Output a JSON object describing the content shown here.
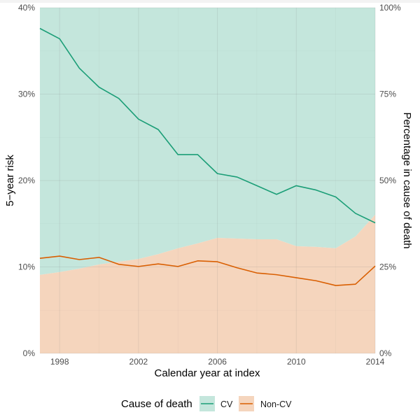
{
  "chart_data": {
    "type": "area",
    "title": "",
    "xlabel": "Calendar year at index",
    "ylabel": "5−year risk",
    "ylabel_right": "Percentage in cause of death",
    "x": [
      1997,
      1998,
      1999,
      2000,
      2001,
      2002,
      2003,
      2004,
      2005,
      2006,
      2007,
      2008,
      2009,
      2010,
      2011,
      2012,
      2013,
      2014
    ],
    "xlim": [
      1997,
      2014
    ],
    "x_ticks": [
      1998,
      2002,
      2006,
      2010,
      2014
    ],
    "x_tick_labels": [
      "1998",
      "2002",
      "2006",
      "2010",
      "2014"
    ],
    "ylim": [
      0,
      40
    ],
    "y_ticks": [
      0,
      10,
      20,
      30,
      40
    ],
    "y_tick_labels": [
      "0%",
      "10%",
      "20%",
      "30%",
      "40%"
    ],
    "ylim_right": [
      0,
      100
    ],
    "y_ticks_right": [
      0,
      25,
      50,
      75,
      100
    ],
    "y_tick_labels_right": [
      "0%",
      "25%",
      "50%",
      "75%",
      "100%"
    ],
    "grid": true,
    "lines": [
      {
        "name": "CV",
        "axis": "left",
        "color": "#1b9e77",
        "values": [
          37.6,
          36.4,
          33.0,
          30.8,
          29.5,
          27.1,
          25.9,
          23.0,
          23.0,
          20.8,
          20.4,
          19.4,
          18.4,
          19.4,
          18.9,
          18.1,
          16.2,
          15.1
        ]
      },
      {
        "name": "Non-CV",
        "axis": "left",
        "color": "#d95f02",
        "values": [
          11.0,
          11.25,
          10.85,
          11.1,
          10.3,
          10.05,
          10.35,
          10.05,
          10.7,
          10.6,
          9.9,
          9.3,
          9.1,
          8.75,
          8.4,
          7.85,
          8.0,
          10.1
        ]
      }
    ],
    "areas": [
      {
        "name": "Non-CV",
        "axis": "right",
        "color": "#f5d5bd",
        "values": [
          22.7,
          23.5,
          24.5,
          25.7,
          26.5,
          27.3,
          28.7,
          30.4,
          31.8,
          33.4,
          33.2,
          33.0,
          33.0,
          31.0,
          30.8,
          30.4,
          33.8,
          40.1
        ]
      },
      {
        "name": "CV",
        "axis": "right",
        "color": "#c4e6dc",
        "values": [
          77.3,
          76.5,
          75.5,
          74.3,
          73.5,
          72.7,
          71.3,
          69.6,
          68.2,
          66.6,
          66.8,
          67.0,
          67.0,
          69.0,
          69.2,
          69.6,
          66.2,
          59.9
        ]
      }
    ],
    "legend": {
      "title": "Cause of death",
      "placement": "bottom",
      "entries": [
        {
          "label": "CV",
          "fill": "#c4e6dc",
          "line": "#1b9e77"
        },
        {
          "label": "Non-CV",
          "fill": "#f5d5bd",
          "line": "#d95f02"
        }
      ]
    }
  }
}
